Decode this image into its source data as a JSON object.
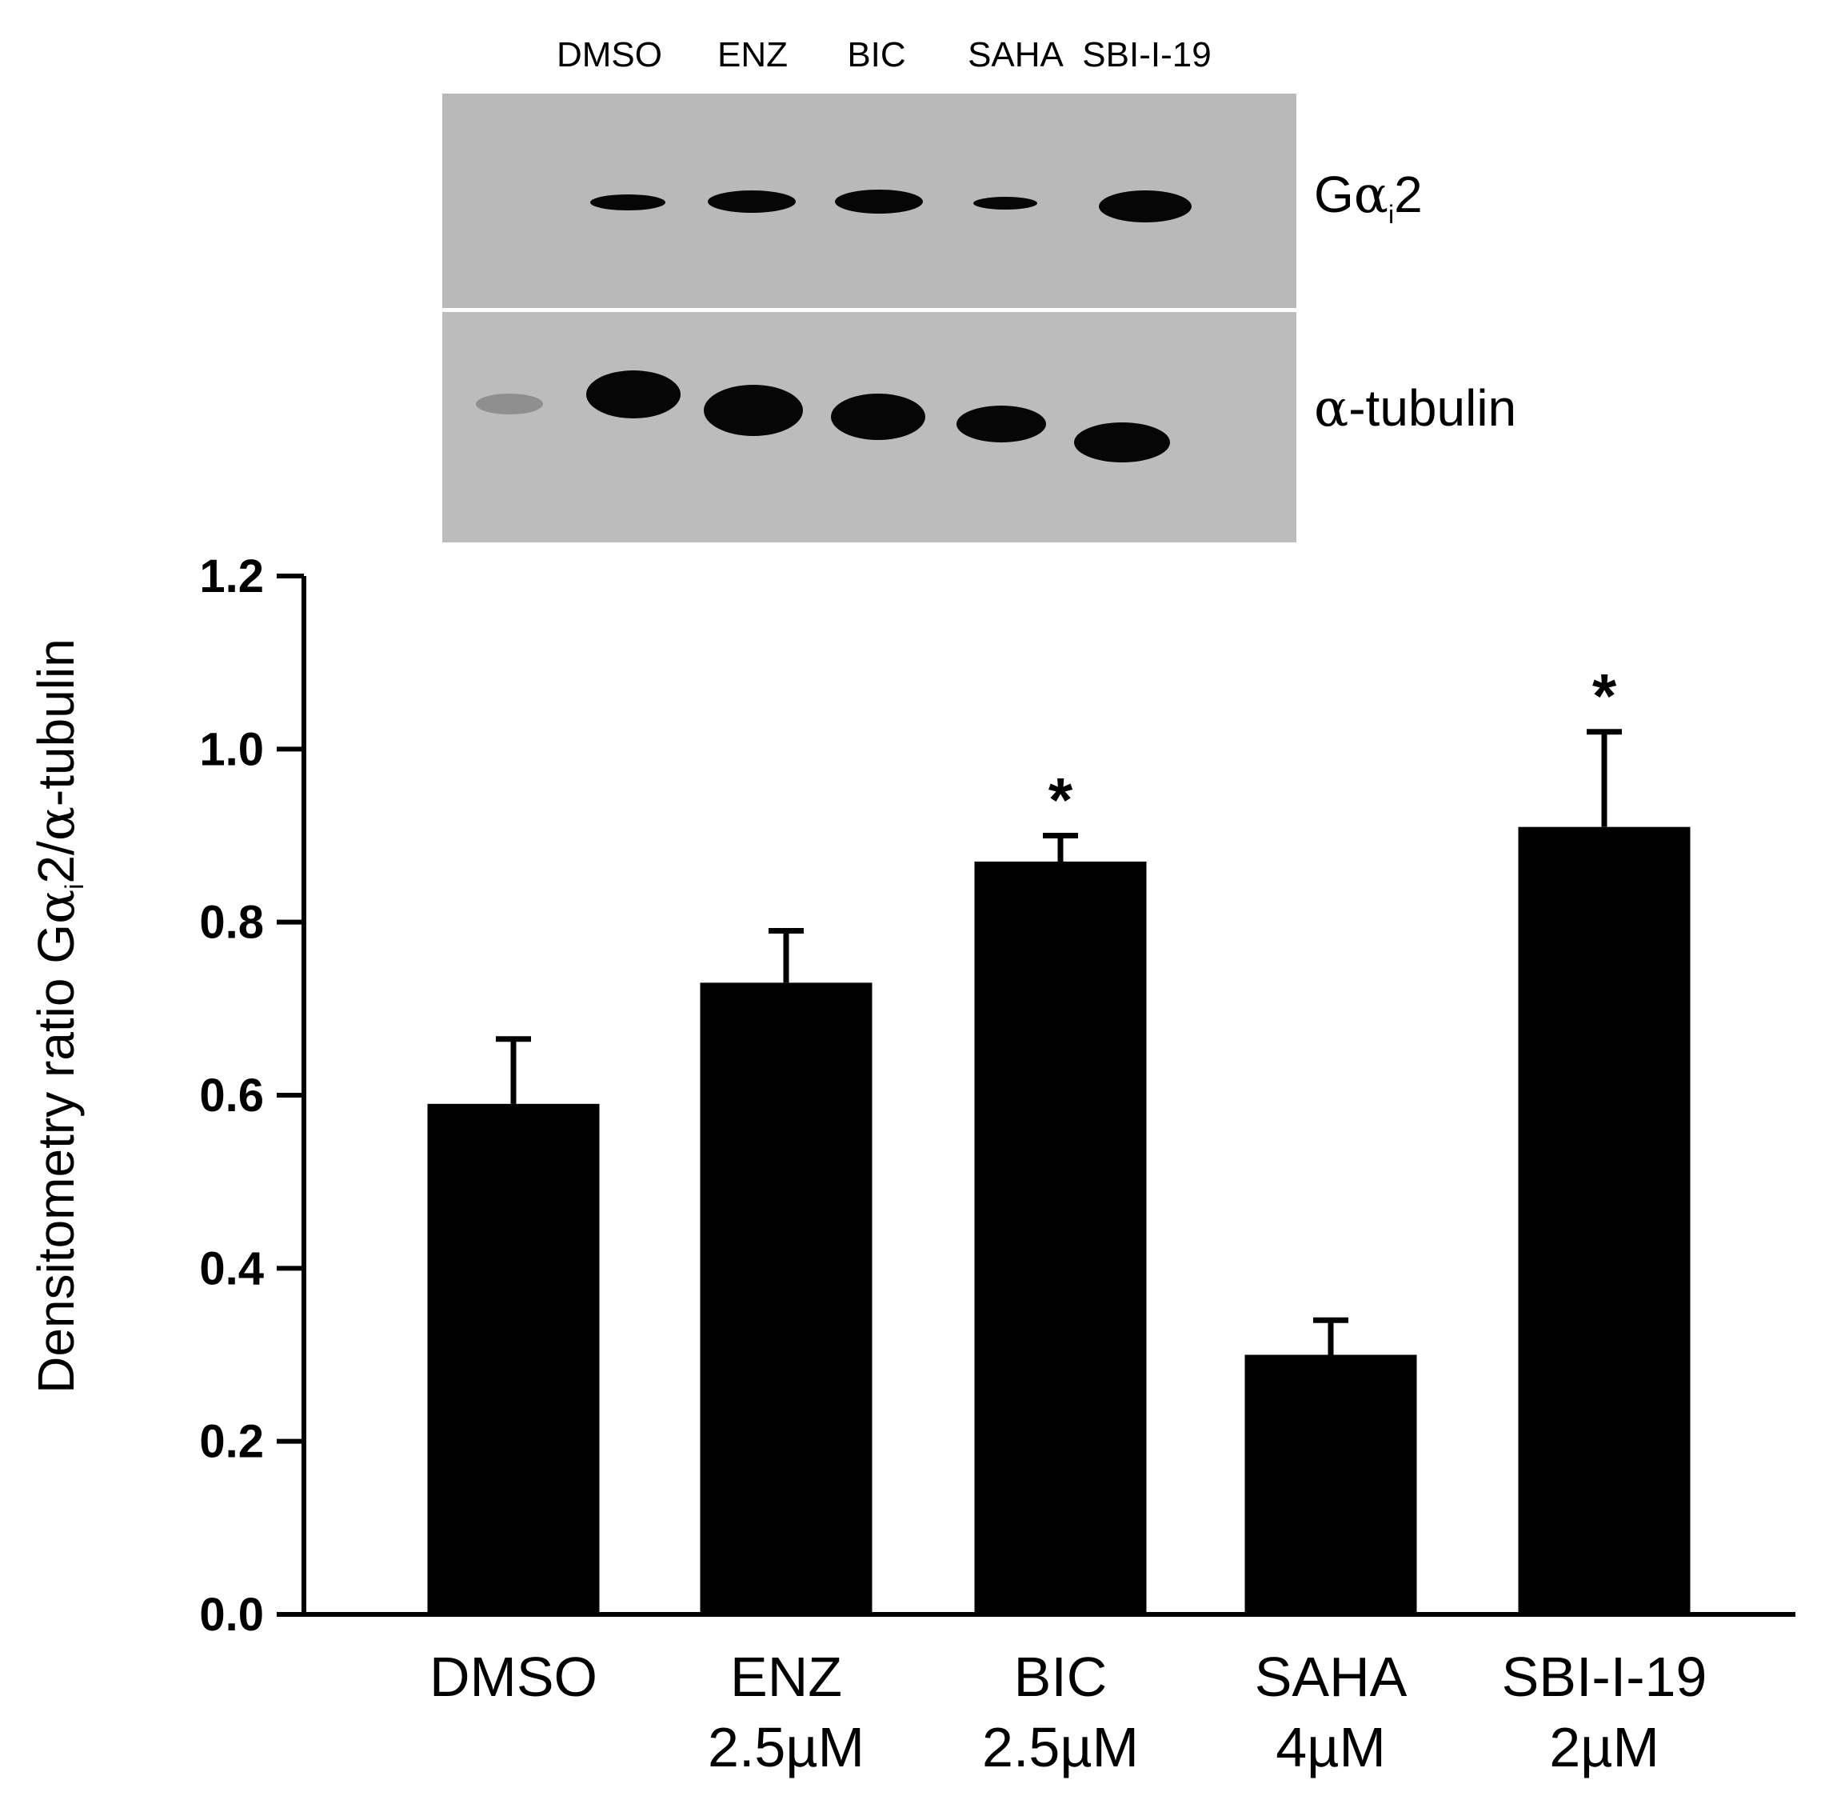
{
  "blot": {
    "lane_labels": [
      "DMSO",
      "ENZ",
      "BIC",
      "SAHA",
      "SBI-I-19"
    ],
    "rows": [
      {
        "label_main": "G",
        "label_greek": "α",
        "label_sub": "i",
        "label_tail": "2"
      },
      {
        "label_main": "",
        "label_greek": "α",
        "label_sub": "",
        "label_tail": "-tubulin"
      }
    ],
    "background_color": "#b9b9b9",
    "band_color": "#060606"
  },
  "chart_data": {
    "type": "bar",
    "categories": [
      {
        "line1": "DMSO",
        "line2": ""
      },
      {
        "line1": "ENZ",
        "line2": "2.5µM"
      },
      {
        "line1": "BIC",
        "line2": "2.5µM"
      },
      {
        "line1": "SAHA",
        "line2": "4µM"
      },
      {
        "line1": "SBI-I-19",
        "line2": "2µM"
      }
    ],
    "values": [
      0.59,
      0.73,
      0.87,
      0.3,
      0.91
    ],
    "errors": [
      0.075,
      0.06,
      0.03,
      0.04,
      0.11
    ],
    "significance": [
      "",
      "",
      "*",
      "",
      "*"
    ],
    "ylabel_prefix": "Densitometry ratio G",
    "ylabel_greek1": "α",
    "ylabel_sub": "i",
    "ylabel_mid": "2/",
    "ylabel_greek2": "α",
    "ylabel_suffix": "-tubulin",
    "ylim": [
      0,
      1.2
    ],
    "yticks": [
      "0.0",
      "0.2",
      "0.4",
      "0.6",
      "0.8",
      "1.0",
      "1.2"
    ],
    "bar_color": "#000000",
    "grid": false
  }
}
